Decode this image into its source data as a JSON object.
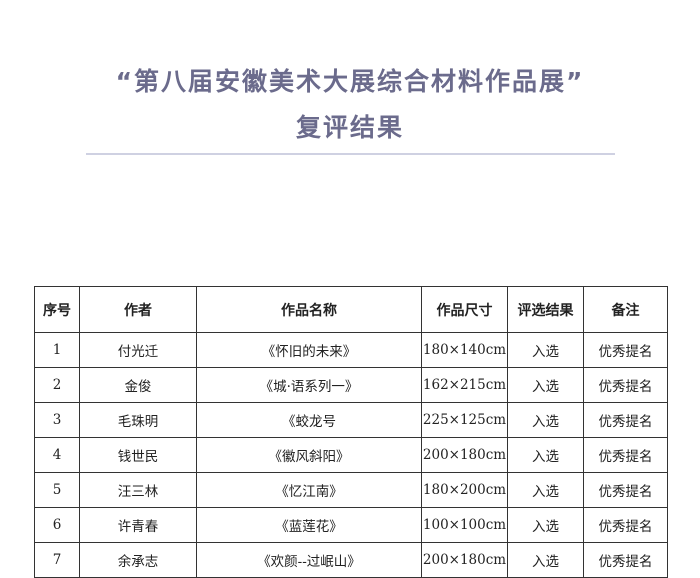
{
  "title": {
    "line1": "“第八届安徽美术大展综合材料作品展”",
    "line2": "复评结果"
  },
  "table": {
    "headers": [
      "序号",
      "作者",
      "作品名称",
      "作品尺寸",
      "评选结果",
      "备注"
    ],
    "rows": [
      [
        "1",
        "付光迁",
        "《怀旧的未来》",
        "180×140cm",
        "入选",
        "优秀提名"
      ],
      [
        "2",
        "金俊",
        "《城·语系列一》",
        "162×215cm",
        "入选",
        "优秀提名"
      ],
      [
        "3",
        "毛珠明",
        "《蛟龙号",
        "225×125cm",
        "入选",
        "优秀提名"
      ],
      [
        "4",
        "钱世民",
        "《徽风斜阳》",
        "200×180cm",
        "入选",
        "优秀提名"
      ],
      [
        "5",
        "汪三林",
        "《忆江南》",
        "180×200cm",
        "入选",
        "优秀提名"
      ],
      [
        "6",
        "许青春",
        "《蓝莲花》",
        "100×100cm",
        "入选",
        "优秀提名"
      ],
      [
        "7",
        "余承志",
        "《欢颜--过岷山》",
        "200×180cm",
        "入选",
        "优秀提名"
      ]
    ]
  }
}
